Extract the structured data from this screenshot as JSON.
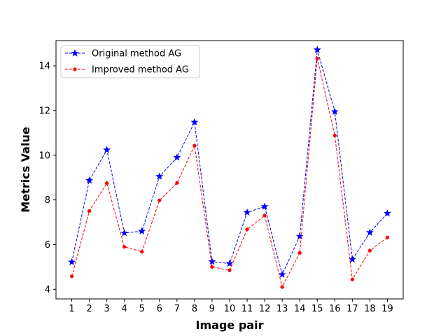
{
  "chart_data": {
    "type": "line",
    "title": "",
    "xlabel": "Image pair",
    "ylabel": "Metrics Value",
    "x": [
      1,
      2,
      3,
      4,
      5,
      6,
      7,
      8,
      9,
      10,
      11,
      12,
      13,
      14,
      15,
      16,
      17,
      18,
      19
    ],
    "xlim": [
      0.1,
      19.9
    ],
    "ylim": [
      3.57,
      15.13
    ],
    "yticks": [
      4,
      6,
      8,
      10,
      12,
      14
    ],
    "grid": false,
    "legend_position": "upper-left",
    "series": [
      {
        "name": "Original method AG",
        "color": "#0000ff",
        "linestyle": "dashed",
        "marker": "star",
        "values": [
          5.22,
          8.87,
          10.24,
          6.52,
          6.6,
          9.05,
          9.9,
          11.48,
          5.24,
          5.15,
          7.44,
          7.7,
          4.66,
          6.37,
          14.72,
          11.95,
          5.34,
          6.54,
          7.4
        ]
      },
      {
        "name": "Improved method AG",
        "color": "#ff0000",
        "linestyle": "dashed",
        "marker": "circle",
        "values": [
          4.58,
          7.5,
          8.75,
          5.9,
          5.68,
          7.98,
          8.76,
          10.43,
          5.0,
          4.85,
          6.68,
          7.3,
          4.1,
          5.63,
          14.33,
          10.88,
          4.44,
          5.73,
          6.32
        ]
      }
    ]
  }
}
